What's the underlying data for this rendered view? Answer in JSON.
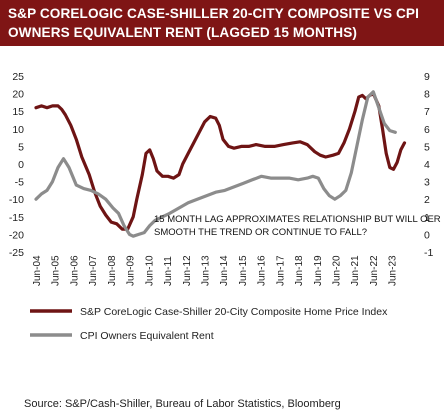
{
  "title": {
    "line1": "S&P CORELOGIC CASE-SHILLER 20-CITY COMPOSITE VS CPI",
    "line2": "OWNERS EQUIVALENT RENT (LAGGED 15 MONTHS)"
  },
  "source": "Source:  S&P/Cash-Shiller,  Bureau of Labor Statistics,  Bloomberg",
  "chart_data": {
    "type": "line",
    "annotation": {
      "line1": "15 MONTH LAG APPROXIMATES RELATIONSHIP BUT WILL OER",
      "line2": "SMOOTH THE TREND OR CONTINUE TO FALL?"
    },
    "left_axis": {
      "ylim": [
        -25,
        25
      ],
      "ticks": [
        "25",
        "20",
        "15",
        "10",
        "5",
        "0",
        "-5",
        "-10",
        "-15",
        "-20",
        "-25"
      ]
    },
    "right_axis": {
      "ylim": [
        -1,
        9
      ],
      "ticks": [
        "9",
        "8",
        "7",
        "6",
        "5",
        "4",
        "3",
        "2",
        "1",
        "0",
        "-1"
      ]
    },
    "x_ticks": [
      "Jun-04",
      "Jun-05",
      "Jun-06",
      "Jun-07",
      "Jun-08",
      "Jun-09",
      "Jun-10",
      "Jun-11",
      "Jun-12",
      "Jun-13",
      "Jun-14",
      "Jun-15",
      "Jun-16",
      "Jun-17",
      "Jun-18",
      "Jun-19",
      "Jun-20",
      "Jun-21",
      "Jun-22",
      "Jun-23"
    ],
    "x_range": [
      2004.0,
      2024.4
    ],
    "grid": false,
    "legend_position": "bottom",
    "series": [
      {
        "name": "S&P CoreLogic Case-Shiller 20-City Composite Home Price Index",
        "axis": "left",
        "color": "#6e1414",
        "x": [
          2004.0,
          2004.3,
          2004.6,
          2004.9,
          2005.2,
          2005.4,
          2005.6,
          2005.9,
          2006.2,
          2006.5,
          2006.9,
          2007.2,
          2007.5,
          2007.8,
          2008.1,
          2008.4,
          2008.7,
          2009.0,
          2009.3,
          2009.5,
          2009.8,
          2010.0,
          2010.2,
          2010.4,
          2010.6,
          2010.9,
          2011.2,
          2011.5,
          2011.8,
          2012.0,
          2012.3,
          2012.6,
          2012.9,
          2013.2,
          2013.5,
          2013.8,
          2014.0,
          2014.2,
          2014.5,
          2014.8,
          2015.2,
          2015.6,
          2016.0,
          2016.5,
          2017.0,
          2017.5,
          2018.0,
          2018.4,
          2018.8,
          2019.2,
          2019.5,
          2019.8,
          2020.2,
          2020.5,
          2020.8,
          2021.1,
          2021.4,
          2021.6,
          2021.8,
          2022.0,
          2022.2,
          2022.4,
          2022.7,
          2022.9,
          2023.1,
          2023.3,
          2023.5,
          2023.7,
          2023.9,
          2024.1
        ],
        "values": [
          16.0,
          16.5,
          16.0,
          16.5,
          16.5,
          15.5,
          14.0,
          11.0,
          7.0,
          2.0,
          -3.0,
          -8.0,
          -12.0,
          -14.5,
          -16.5,
          -17.0,
          -18.5,
          -18.5,
          -15.0,
          -10.0,
          -3.0,
          3.0,
          4.0,
          1.5,
          -2.0,
          -3.5,
          -3.5,
          -4.0,
          -3.0,
          0.0,
          3.0,
          6.0,
          9.0,
          12.0,
          13.5,
          13.0,
          11.0,
          7.0,
          5.0,
          4.5,
          5.0,
          5.0,
          5.5,
          5.0,
          5.0,
          5.5,
          6.0,
          6.3,
          5.5,
          3.5,
          2.5,
          2.0,
          2.5,
          3.0,
          6.0,
          10.0,
          15.0,
          19.0,
          19.5,
          18.5,
          19.5,
          20.0,
          16.5,
          10.0,
          3.0,
          -1.0,
          -1.5,
          0.5,
          4.0,
          6.0
        ]
      },
      {
        "name": "CPI Owners Equivalent Rent",
        "axis": "right",
        "color": "#8c8c8c",
        "x": [
          2004.0,
          2004.3,
          2004.6,
          2004.9,
          2005.2,
          2005.5,
          2005.8,
          2006.2,
          2006.6,
          2007.0,
          2007.4,
          2007.8,
          2008.2,
          2008.5,
          2008.8,
          2009.1,
          2009.3,
          2009.6,
          2009.9,
          2010.2,
          2010.5,
          2010.9,
          2011.3,
          2011.8,
          2012.3,
          2012.8,
          2013.3,
          2013.8,
          2014.3,
          2014.8,
          2015.3,
          2015.8,
          2016.3,
          2016.8,
          2017.3,
          2017.8,
          2018.3,
          2018.8,
          2019.1,
          2019.4,
          2019.7,
          2020.0,
          2020.3,
          2020.6,
          2020.9,
          2021.2,
          2021.5,
          2021.8,
          2022.1,
          2022.4,
          2022.7,
          2023.0,
          2023.3,
          2023.6
        ],
        "values": [
          2.0,
          2.3,
          2.5,
          3.0,
          3.8,
          4.3,
          3.8,
          2.8,
          2.6,
          2.5,
          2.3,
          2.0,
          1.5,
          1.2,
          0.5,
          0.0,
          -0.1,
          0.0,
          0.1,
          0.5,
          0.8,
          1.0,
          1.2,
          1.5,
          1.8,
          2.0,
          2.2,
          2.4,
          2.5,
          2.7,
          2.9,
          3.1,
          3.3,
          3.2,
          3.2,
          3.2,
          3.1,
          3.2,
          3.3,
          3.2,
          2.6,
          2.2,
          2.0,
          2.2,
          2.5,
          3.5,
          5.0,
          6.5,
          7.8,
          8.1,
          7.2,
          6.3,
          5.9,
          5.8
        ]
      }
    ]
  }
}
